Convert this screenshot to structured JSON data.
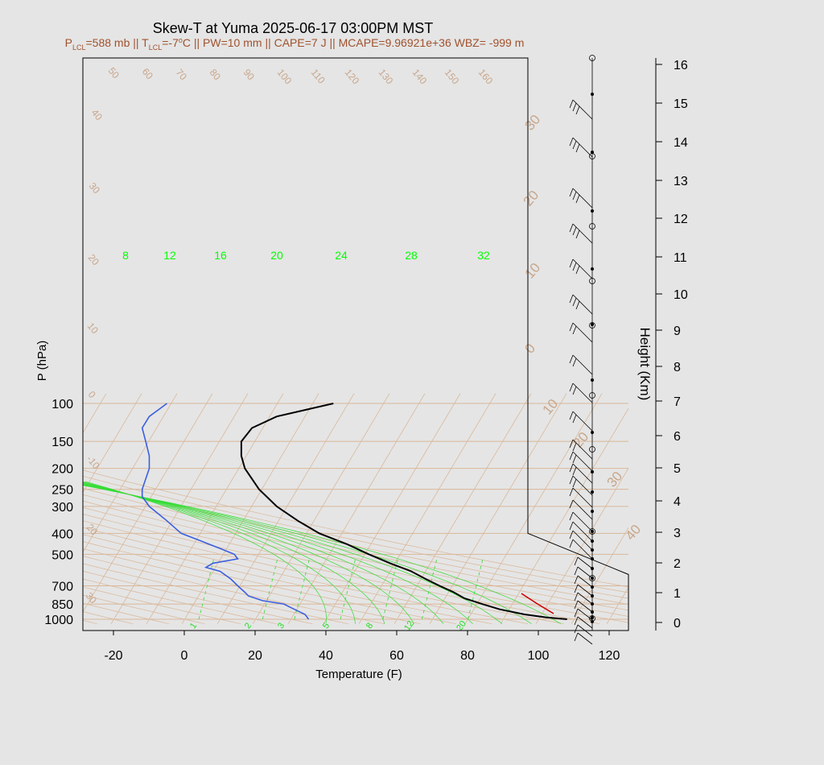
{
  "title": "Skew-T at Yuma 2025-06-17 03:00PM MST",
  "subtitle": {
    "p_lcl_prefix": "P",
    "p_lcl_sub": "LCL",
    "p_lcl_value": "=588 mb || T",
    "t_lcl_sub": "LCL",
    "t_lcl_value": "=-7",
    "deg": "o",
    "rest": "C || PW=10 mm || CAPE=7 J || MCAPE=9.96921e+36 WBZ= -999 m"
  },
  "colors": {
    "temperature": "#000000",
    "dewpoint": "#3b5fe0",
    "parcel": "#cc0000",
    "isotherm": "#d9b89a",
    "isobar": "#d9b89a",
    "mixing_ratio": "#33dd33"
  },
  "chart_data": {
    "type": "line",
    "xlabel": "Temperature (F)",
    "ylabel": "P (hPa)",
    "y2label": "Height (Km)",
    "x_ticks": [
      "-20",
      "0",
      "20",
      "40",
      "60",
      "80",
      "100",
      "120"
    ],
    "y_ticks": [
      "100",
      "150",
      "200",
      "250",
      "300",
      "400",
      "500",
      "700",
      "850",
      "1000"
    ],
    "height_ticks": [
      "0",
      "1",
      "2",
      "3",
      "4",
      "5",
      "6",
      "7",
      "8",
      "9",
      "10",
      "11",
      "12",
      "13",
      "14",
      "15",
      "16"
    ],
    "isotherm_labels": [
      "50",
      "60",
      "70",
      "80",
      "90",
      "100",
      "110",
      "120",
      "130",
      "140",
      "150",
      "160",
      "40",
      "30",
      "20",
      "10",
      "0",
      "-10",
      "20",
      "30"
    ],
    "isotherm_labels_big": [
      "30",
      "20",
      "10",
      "0",
      "10",
      "20",
      "30",
      "40"
    ],
    "mixing_ratio_labels_top": [
      "8",
      "12",
      "16",
      "20",
      "24",
      "28",
      "32"
    ],
    "mixing_ratio_labels_bottom": [
      "1",
      "2",
      "3",
      "5",
      "8",
      "12",
      "20"
    ],
    "series": [
      {
        "name": "Temperature",
        "pressure": [
          1000,
          980,
          950,
          900,
          850,
          800,
          750,
          700,
          650,
          600,
          550,
          500,
          450,
          400,
          350,
          300,
          250,
          200,
          175,
          150,
          130,
          115,
          100
        ],
        "values": [
          108,
          102,
          96,
          89,
          84,
          79,
          76,
          72,
          68,
          64,
          58,
          52,
          46,
          38,
          32,
          26,
          21,
          17,
          16,
          16,
          19,
          26,
          42
        ]
      },
      {
        "name": "Dewpoint",
        "pressure": [
          1000,
          950,
          900,
          850,
          820,
          780,
          750,
          700,
          650,
          600,
          575,
          550,
          525,
          500,
          470,
          430,
          400,
          350,
          300,
          270,
          250,
          200,
          175,
          150,
          130,
          115,
          100
        ],
        "values": [
          35,
          34,
          31,
          28,
          22,
          18,
          17,
          15,
          13,
          10,
          6,
          8,
          15,
          14,
          10,
          4,
          -1,
          -5,
          -10,
          -12,
          -12,
          -10,
          -10,
          -11,
          -12,
          -10,
          -5
        ]
      }
    ]
  }
}
